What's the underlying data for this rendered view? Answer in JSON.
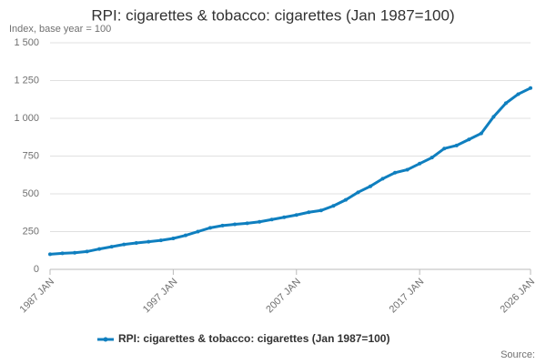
{
  "chart_data": {
    "type": "line",
    "title": "RPI: cigarettes & tobacco: cigarettes (Jan 1987=100)",
    "subtitle": "Index, base year = 100",
    "source": "Source:",
    "x": [
      "1987 JAN",
      "1988 JAN",
      "1989 JAN",
      "1990 JAN",
      "1991 JAN",
      "1992 JAN",
      "1993 JAN",
      "1994 JAN",
      "1995 JAN",
      "1996 JAN",
      "1997 JAN",
      "1998 JAN",
      "1999 JAN",
      "2000 JAN",
      "2001 JAN",
      "2002 JAN",
      "2003 JAN",
      "2004 JAN",
      "2005 JAN",
      "2006 JAN",
      "2007 JAN",
      "2008 JAN",
      "2009 JAN",
      "2010 JAN",
      "2011 JAN",
      "2012 JAN",
      "2013 JAN",
      "2014 JAN",
      "2015 JAN",
      "2016 JAN",
      "2017 JAN",
      "2018 JAN",
      "2019 JAN",
      "2020 JAN",
      "2021 JAN",
      "2022 JAN",
      "2023 JAN",
      "2024 JAN",
      "2025 JAN",
      "2026 JAN"
    ],
    "series": [
      {
        "name": "RPI: cigarettes & tobacco: cigarettes (Jan 1987=100)",
        "color": "#0f7fbf",
        "values": [
          100,
          106,
          110,
          118,
          135,
          150,
          165,
          175,
          183,
          192,
          205,
          225,
          250,
          275,
          290,
          298,
          305,
          315,
          330,
          345,
          360,
          378,
          390,
          420,
          460,
          510,
          550,
          600,
          640,
          660,
          700,
          740,
          800,
          820,
          860,
          900,
          1010,
          1100,
          1160,
          1200
        ]
      }
    ],
    "xticks": [
      "1987 JAN",
      "1997 JAN",
      "2007 JAN",
      "2017 JAN",
      "2026 JAN"
    ],
    "ylim": [
      0,
      1500
    ],
    "yticks": [
      0,
      250,
      500,
      750,
      {
        "value": 1000,
        "label": "1 000"
      },
      {
        "value": 1250,
        "label": "1 250"
      },
      {
        "value": 1500,
        "label": "1 500"
      }
    ],
    "grid": true
  }
}
